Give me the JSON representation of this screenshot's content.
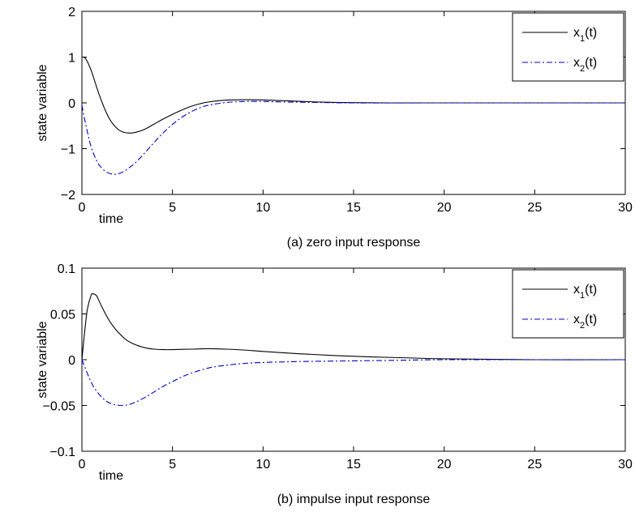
{
  "chart_data": [
    {
      "type": "line",
      "caption": "(a) zero input response",
      "xlabel": "time",
      "ylabel": "state variable",
      "xlim": [
        0,
        30
      ],
      "ylim": [
        -2,
        2
      ],
      "xticks": [
        0,
        5,
        10,
        15,
        20,
        25,
        30
      ],
      "yticks": [
        -2,
        -1,
        0,
        1,
        2
      ],
      "ytick_labels": [
        "−2",
        "−1",
        "0",
        "1",
        "2"
      ],
      "grid": false,
      "legend": "top-right",
      "series": [
        {
          "name": "x_1(t)",
          "color": "#000000",
          "dash": "solid",
          "x": [
            0,
            0.2,
            0.5,
            0.8,
            1.0,
            1.3,
            1.6,
            2.0,
            2.3,
            2.6,
            3.0,
            3.5,
            4.0,
            4.5,
            5.0,
            5.5,
            6.0,
            6.5,
            7.0,
            8.0,
            9.0,
            10.0,
            11.0,
            12.0,
            13.0,
            14.0,
            15.0,
            17.0,
            20.0,
            25.0,
            30.0
          ],
          "y": [
            1.0,
            0.97,
            0.72,
            0.36,
            0.13,
            -0.17,
            -0.4,
            -0.58,
            -0.64,
            -0.66,
            -0.64,
            -0.57,
            -0.46,
            -0.35,
            -0.25,
            -0.16,
            -0.08,
            -0.02,
            0.02,
            0.06,
            0.07,
            0.065,
            0.05,
            0.035,
            0.02,
            0.01,
            0.005,
            0.0,
            0.0,
            0.0,
            0.0
          ]
        },
        {
          "name": "x_2(t)",
          "color": "#0000cc",
          "dash": "dashdot",
          "x": [
            0,
            0.2,
            0.5,
            0.8,
            1.0,
            1.3,
            1.6,
            1.8,
            2.0,
            2.3,
            2.6,
            3.0,
            3.5,
            4.0,
            4.5,
            5.0,
            5.5,
            6.0,
            6.5,
            7.0,
            8.0,
            9.0,
            10.0,
            11.0,
            12.0,
            13.0,
            15.0,
            20.0,
            25.0,
            30.0
          ],
          "y": [
            -0.05,
            -0.45,
            -0.95,
            -1.25,
            -1.38,
            -1.5,
            -1.55,
            -1.56,
            -1.55,
            -1.5,
            -1.42,
            -1.29,
            -1.08,
            -0.86,
            -0.65,
            -0.47,
            -0.32,
            -0.2,
            -0.11,
            -0.05,
            0.01,
            0.03,
            0.03,
            0.02,
            0.015,
            0.01,
            0.0,
            0.0,
            0.0,
            0.0
          ]
        }
      ]
    },
    {
      "type": "line",
      "caption": "(b) impulse input response",
      "xlabel": "time",
      "ylabel": "state variable",
      "xlim": [
        0,
        30
      ],
      "ylim": [
        -0.1,
        0.1
      ],
      "xticks": [
        0,
        5,
        10,
        15,
        20,
        25,
        30
      ],
      "yticks": [
        -0.1,
        -0.05,
        0,
        0.05,
        0.1
      ],
      "ytick_labels": [
        "−0.1",
        "−0.05",
        "0",
        "0.05",
        "0.1"
      ],
      "grid": false,
      "legend": "top-right",
      "series": [
        {
          "name": "x_1(t)",
          "color": "#000000",
          "dash": "solid",
          "x": [
            0,
            0.15,
            0.3,
            0.5,
            0.6,
            0.8,
            1.0,
            1.3,
            1.6,
            2.0,
            2.5,
            3.0,
            3.5,
            4.0,
            4.5,
            5.0,
            6.0,
            7.0,
            8.0,
            9.0,
            10.0,
            12.0,
            14.0,
            16.0,
            18.0,
            20.0,
            25.0,
            30.0
          ],
          "y": [
            0.0,
            0.03,
            0.055,
            0.07,
            0.072,
            0.07,
            0.062,
            0.05,
            0.04,
            0.03,
            0.021,
            0.016,
            0.013,
            0.0115,
            0.011,
            0.011,
            0.0115,
            0.012,
            0.0115,
            0.0105,
            0.009,
            0.0065,
            0.0045,
            0.003,
            0.002,
            0.001,
            0.0,
            0.0
          ]
        },
        {
          "name": "x_2(t)",
          "color": "#0000cc",
          "dash": "dashdot",
          "x": [
            0,
            0.3,
            0.6,
            1.0,
            1.4,
            1.8,
            2.2,
            2.6,
            3.0,
            3.5,
            4.0,
            4.5,
            5.0,
            5.5,
            6.0,
            7.0,
            8.0,
            9.0,
            10.0,
            11.0,
            12.0,
            14.0,
            16.0,
            18.0,
            20.0,
            25.0,
            30.0
          ],
          "y": [
            0.0,
            -0.015,
            -0.028,
            -0.039,
            -0.046,
            -0.049,
            -0.05,
            -0.049,
            -0.046,
            -0.041,
            -0.035,
            -0.029,
            -0.024,
            -0.019,
            -0.015,
            -0.009,
            -0.006,
            -0.004,
            -0.003,
            -0.0025,
            -0.002,
            -0.0015,
            -0.001,
            -0.0005,
            0.0,
            0.0,
            0.0
          ]
        }
      ]
    }
  ]
}
